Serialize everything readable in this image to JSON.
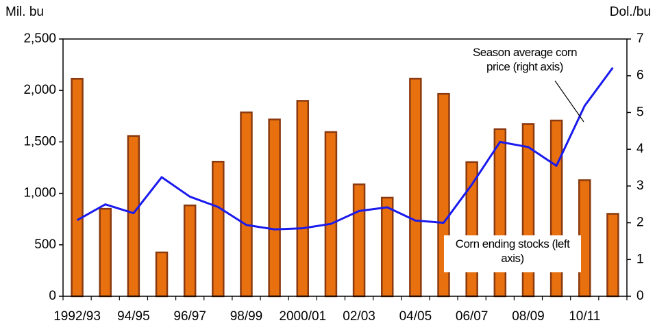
{
  "chart_data": {
    "type": "bar",
    "y_label": "Mil. bu",
    "y2_label": "Dol./bu",
    "categories": [
      "1992/93",
      null,
      "94/95",
      null,
      "96/97",
      null,
      "98/99",
      null,
      "2000/01",
      null,
      "02/03",
      null,
      "04/05",
      null,
      "06/07",
      null,
      "08/09",
      null,
      "10/11",
      null
    ],
    "series": [
      {
        "name": "Corn ending stocks (left axis)",
        "type": "bar",
        "color": "#e8700f",
        "edge": "#8a3a10",
        "values": [
          2113,
          850,
          1558,
          426,
          883,
          1308,
          1787,
          1718,
          1899,
          1596,
          1087,
          958,
          2114,
          1967,
          1304,
          1624,
          1673,
          1708,
          1128,
          801
        ]
      },
      {
        "name": "Season average corn price (right axis)",
        "type": "line",
        "axis": "y2",
        "color": "#1a1aee",
        "values": [
          2.07,
          2.5,
          2.26,
          3.24,
          2.71,
          2.43,
          1.94,
          1.82,
          1.85,
          1.97,
          2.32,
          2.42,
          2.06,
          2.0,
          3.04,
          4.2,
          4.06,
          3.55,
          5.18,
          6.22
        ]
      }
    ],
    "ylim": [
      0,
      2500
    ],
    "yticks": [
      0,
      500,
      {
        "value": 1000,
        "label": "1,000"
      },
      {
        "value": 1500,
        "label": "1,500"
      },
      {
        "value": 2000,
        "label": "2,000"
      },
      {
        "value": 2500,
        "label": "2,500"
      }
    ],
    "y2lim": [
      0,
      7
    ],
    "y2ticks": [
      0,
      1,
      2,
      3,
      4,
      5,
      6,
      7
    ],
    "grid": false
  }
}
